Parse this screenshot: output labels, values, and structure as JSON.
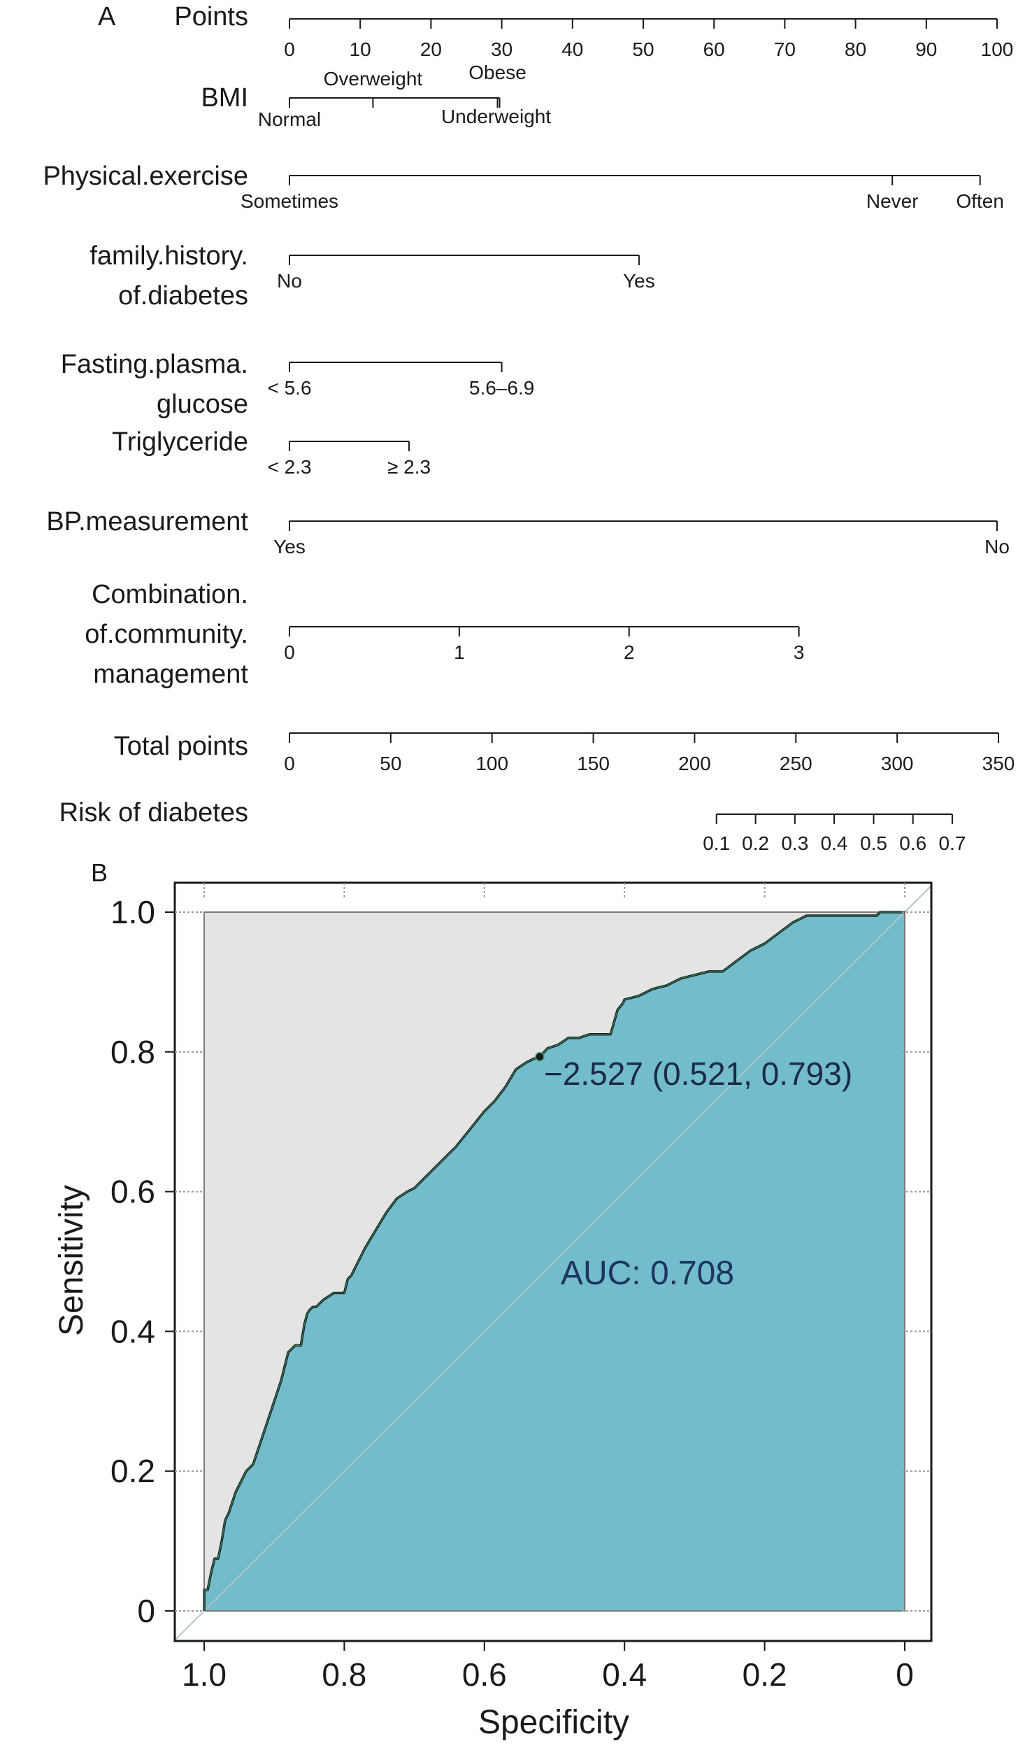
{
  "panel_a_label": "A",
  "panel_b_label": "B",
  "chart_data": [
    {
      "type": "nomogram",
      "panel": "A",
      "scales": [
        {
          "label": "Points",
          "kind": "axis",
          "range": [
            0,
            100
          ],
          "ticks": [
            0,
            10,
            20,
            30,
            40,
            50,
            60,
            70,
            80,
            90,
            100
          ]
        },
        {
          "label": "BMI",
          "kind": "variable",
          "levels": [
            {
              "name": "Normal",
              "points": 0
            },
            {
              "name": "Overweight",
              "points": 11.8
            },
            {
              "name": "Obese",
              "points": 29.4
            },
            {
              "name": "Underweight",
              "points": 29.7
            }
          ]
        },
        {
          "label": "Physical.exercise",
          "kind": "variable",
          "levels": [
            {
              "name": "Sometimes",
              "points": 0
            },
            {
              "name": "Never",
              "points": 85.2
            },
            {
              "name": "Often",
              "points": 97.6
            }
          ]
        },
        {
          "label": "family.history.\nof.diabetes",
          "kind": "variable",
          "levels": [
            {
              "name": "No",
              "points": 0
            },
            {
              "name": "Yes",
              "points": 49.4
            }
          ]
        },
        {
          "label": "Fasting.plasma.\nglucose",
          "kind": "variable",
          "levels": [
            {
              "name": "< 5.6",
              "points": 0
            },
            {
              "name": "5.6–6.9",
              "points": 30.0
            }
          ]
        },
        {
          "label": "Triglyceride",
          "kind": "variable",
          "levels": [
            {
              "name": "< 2.3",
              "points": 0
            },
            {
              "name": "≥ 2.3",
              "points": 16.9
            }
          ]
        },
        {
          "label": "BP.measurement",
          "kind": "variable",
          "levels": [
            {
              "name": "Yes",
              "points": 0
            },
            {
              "name": "No",
              "points": 100
            }
          ]
        },
        {
          "label": "Combination.\nof.community.\nmanagement",
          "kind": "variable",
          "levels": [
            {
              "name": "0",
              "points": 0
            },
            {
              "name": "1",
              "points": 24
            },
            {
              "name": "2",
              "points": 48
            },
            {
              "name": "3",
              "points": 72
            }
          ]
        },
        {
          "label": "Total points",
          "kind": "axis",
          "range": [
            0,
            350
          ],
          "ticks": [
            0,
            50,
            100,
            150,
            200,
            250,
            300,
            350
          ]
        },
        {
          "label": "Risk of diabetes",
          "kind": "risk",
          "ticks": [
            {
              "risk": "0.1",
              "total_points": 210.8
            },
            {
              "risk": "0.2",
              "total_points": 230.1
            },
            {
              "risk": "0.3",
              "total_points": 249.5
            },
            {
              "risk": "0.4",
              "total_points": 268.9
            },
            {
              "risk": "0.5",
              "total_points": 288.4
            },
            {
              "risk": "0.6",
              "total_points": 307.8
            },
            {
              "risk": "0.7",
              "total_points": 327.2
            }
          ]
        }
      ]
    },
    {
      "type": "line",
      "panel": "B",
      "xlabel": "Specificity",
      "ylabel": "Sensitivity",
      "xlim": [
        1.0,
        0
      ],
      "ylim": [
        0,
        1.0
      ],
      "x_ticks": [
        "1.0",
        "0.8",
        "0.6",
        "0.4",
        "0.2",
        "0"
      ],
      "y_ticks": [
        "0",
        "0.2",
        "0.4",
        "0.6",
        "0.8",
        "1.0"
      ],
      "auc_text": "AUC: 0.708",
      "threshold_text": "−2.527 (0.521, 0.793)",
      "threshold_point": {
        "x": 0.521,
        "y": 0.793
      },
      "colors": {
        "auc_fill": "#72bccb",
        "upper_fill": "#e4e4e4",
        "curve": "#1a1a1a",
        "diagonal": "#b4c4cb"
      },
      "series": [
        {
          "x": [
            1.0,
            1.0,
            0.995,
            0.99,
            0.985,
            0.98,
            0.975,
            0.97,
            0.965,
            0.955,
            0.94,
            0.93,
            0.92,
            0.91,
            0.9,
            0.89,
            0.88,
            0.87,
            0.862,
            0.857,
            0.853,
            0.85,
            0.845,
            0.84,
            0.83,
            0.815,
            0.8,
            0.795,
            0.79,
            0.78,
            0.77,
            0.755,
            0.74,
            0.725,
            0.71,
            0.7,
            0.68,
            0.66,
            0.64,
            0.62,
            0.6,
            0.585,
            0.57,
            0.555,
            0.54,
            0.53,
            0.521,
            0.51,
            0.495,
            0.48,
            0.465,
            0.45,
            0.44,
            0.43,
            0.42,
            0.41,
            0.402,
            0.4,
            0.38,
            0.36,
            0.34,
            0.32,
            0.3,
            0.28,
            0.26,
            0.24,
            0.22,
            0.2,
            0.18,
            0.16,
            0.14,
            0.13,
            0.1,
            0.07,
            0.04,
            0.035,
            0.02,
            0.0
          ],
          "y": [
            0.0,
            0.03,
            0.03,
            0.055,
            0.075,
            0.075,
            0.1,
            0.13,
            0.14,
            0.17,
            0.2,
            0.21,
            0.24,
            0.27,
            0.3,
            0.33,
            0.37,
            0.38,
            0.38,
            0.41,
            0.425,
            0.43,
            0.435,
            0.435,
            0.445,
            0.455,
            0.455,
            0.475,
            0.48,
            0.5,
            0.52,
            0.545,
            0.57,
            0.59,
            0.6,
            0.605,
            0.625,
            0.645,
            0.665,
            0.69,
            0.715,
            0.73,
            0.75,
            0.775,
            0.785,
            0.79,
            0.793,
            0.805,
            0.81,
            0.82,
            0.82,
            0.825,
            0.825,
            0.825,
            0.825,
            0.86,
            0.87,
            0.875,
            0.88,
            0.89,
            0.895,
            0.905,
            0.91,
            0.915,
            0.915,
            0.93,
            0.945,
            0.955,
            0.97,
            0.985,
            0.995,
            0.995,
            0.995,
            0.995,
            0.995,
            1.0,
            1.0,
            1.0
          ]
        }
      ]
    }
  ]
}
